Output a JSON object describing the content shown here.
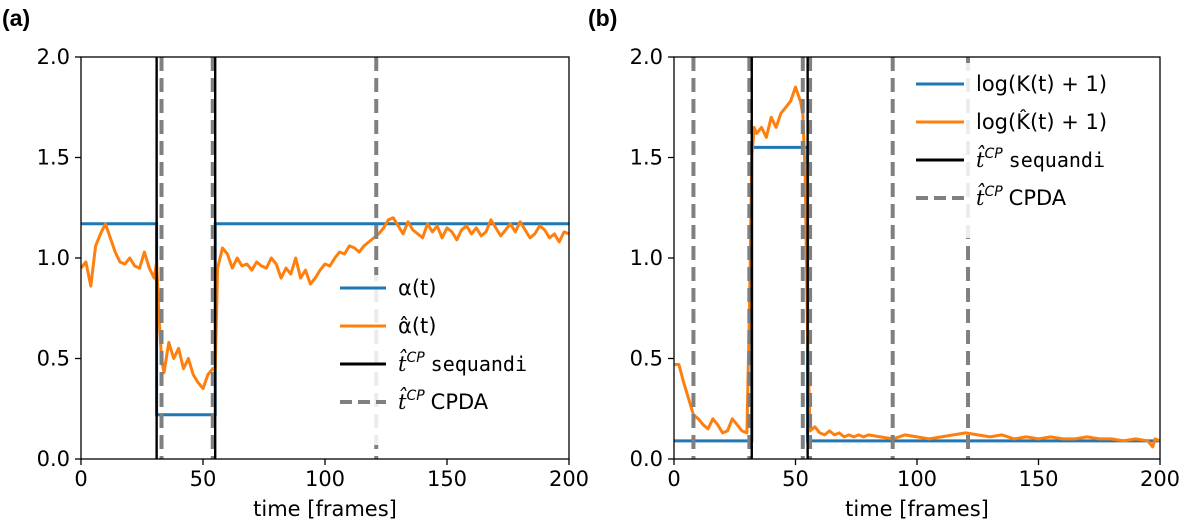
{
  "colors": {
    "true_series": "#1f77b4",
    "estimate_series": "#ff7f0e",
    "sequandi_line": "#000000",
    "cpda_line": "#808080"
  },
  "chart_data": [
    {
      "type": "line",
      "panel_label": "(a)",
      "xlabel": "time [frames]",
      "ylabel": "",
      "xlim": [
        0,
        200
      ],
      "ylim": [
        0,
        2.0
      ],
      "xticks": [
        "0",
        "50",
        "100",
        "150",
        "200"
      ],
      "yticks": [
        "0.0",
        "0.5",
        "1.0",
        "1.5",
        "2.0"
      ],
      "legend_position": "lower-right",
      "legend": [
        {
          "kind": "solid",
          "color_key": "true_series",
          "label": "α(t)"
        },
        {
          "kind": "solid",
          "color_key": "estimate_series",
          "label": "α̂(t)"
        },
        {
          "kind": "solid",
          "color_key": "sequandi_line",
          "label_math": "t̂",
          "label_sup": "CP",
          "label_rest": "sequandi"
        },
        {
          "kind": "dashed",
          "color_key": "cpda_line",
          "label_math": "t̂",
          "label_sup": "CP",
          "label_rest": "CPDA"
        }
      ],
      "true_series": {
        "x": [
          0,
          31,
          31,
          55,
          55,
          200
        ],
        "y": [
          1.17,
          1.17,
          0.22,
          0.22,
          1.17,
          1.17
        ]
      },
      "estimate_series": {
        "x": [
          0,
          2,
          4,
          6,
          8,
          10,
          12,
          14,
          16,
          18,
          20,
          22,
          24,
          26,
          28,
          30,
          31,
          32,
          33,
          34,
          36,
          38,
          40,
          42,
          44,
          46,
          48,
          50,
          52,
          54,
          55,
          56,
          58,
          60,
          62,
          64,
          66,
          68,
          70,
          72,
          74,
          76,
          78,
          80,
          82,
          84,
          86,
          88,
          90,
          92,
          94,
          96,
          98,
          100,
          102,
          104,
          106,
          108,
          110,
          112,
          114,
          116,
          118,
          120,
          122,
          124,
          126,
          128,
          130,
          132,
          134,
          136,
          138,
          140,
          142,
          144,
          146,
          148,
          150,
          152,
          154,
          156,
          158,
          160,
          162,
          164,
          166,
          168,
          170,
          172,
          174,
          176,
          178,
          180,
          182,
          184,
          186,
          188,
          190,
          192,
          194,
          196,
          198,
          200
        ],
        "y": [
          0.95,
          0.98,
          0.86,
          1.06,
          1.12,
          1.17,
          1.1,
          1.03,
          0.98,
          0.97,
          1.0,
          0.96,
          0.95,
          1.03,
          0.95,
          0.9,
          0.98,
          0.7,
          0.5,
          0.43,
          0.58,
          0.5,
          0.55,
          0.45,
          0.5,
          0.42,
          0.38,
          0.35,
          0.42,
          0.45,
          0.44,
          0.95,
          1.05,
          1.02,
          0.95,
          1.0,
          0.96,
          0.97,
          0.94,
          0.98,
          0.96,
          0.95,
          1.0,
          0.97,
          0.9,
          0.95,
          0.92,
          1.0,
          0.9,
          0.94,
          0.87,
          0.9,
          0.94,
          0.97,
          0.96,
          1.0,
          1.03,
          1.02,
          1.06,
          1.05,
          1.03,
          1.06,
          1.08,
          1.1,
          1.12,
          1.15,
          1.19,
          1.2,
          1.16,
          1.12,
          1.18,
          1.14,
          1.12,
          1.1,
          1.17,
          1.13,
          1.16,
          1.1,
          1.15,
          1.13,
          1.09,
          1.14,
          1.16,
          1.12,
          1.15,
          1.11,
          1.13,
          1.19,
          1.15,
          1.11,
          1.14,
          1.17,
          1.13,
          1.18,
          1.14,
          1.1,
          1.12,
          1.16,
          1.14,
          1.1,
          1.12,
          1.08,
          1.13,
          1.12
        ]
      },
      "sequandi_cp": [
        31,
        55
      ],
      "cpda_cp": [
        33,
        54,
        121
      ]
    },
    {
      "type": "line",
      "panel_label": "(b)",
      "xlabel": "time [frames]",
      "ylabel": "",
      "xlim": [
        0,
        200
      ],
      "ylim": [
        0,
        2.0
      ],
      "xticks": [
        "0",
        "50",
        "100",
        "150",
        "200"
      ],
      "yticks": [
        "0.0",
        "0.5",
        "1.0",
        "1.5",
        "2.0"
      ],
      "legend_position": "upper-right",
      "legend": [
        {
          "kind": "solid",
          "color_key": "true_series",
          "label": "log(K(t) + 1)"
        },
        {
          "kind": "solid",
          "color_key": "estimate_series",
          "label": "log(K̂(t) + 1)"
        },
        {
          "kind": "solid",
          "color_key": "sequandi_line",
          "label_math": "t̂",
          "label_sup": "CP",
          "label_rest": "sequandi"
        },
        {
          "kind": "dashed",
          "color_key": "cpda_line",
          "label_math": "t̂",
          "label_sup": "CP",
          "label_rest": "CPDA"
        }
      ],
      "true_series": {
        "x": [
          0,
          32,
          32,
          55,
          55,
          200
        ],
        "y": [
          0.09,
          0.09,
          1.55,
          1.55,
          0.09,
          0.09
        ]
      },
      "estimate_series": {
        "x": [
          0,
          2,
          4,
          6,
          8,
          10,
          12,
          14,
          16,
          18,
          20,
          22,
          24,
          26,
          28,
          30,
          31,
          32,
          33,
          34,
          36,
          38,
          40,
          42,
          44,
          46,
          48,
          50,
          52,
          53,
          54,
          55,
          56,
          58,
          60,
          62,
          64,
          66,
          68,
          70,
          72,
          74,
          76,
          78,
          80,
          85,
          90,
          95,
          100,
          105,
          110,
          115,
          120,
          125,
          130,
          135,
          140,
          145,
          150,
          155,
          160,
          165,
          170,
          175,
          180,
          185,
          190,
          195,
          197,
          198,
          200
        ],
        "y": [
          0.47,
          0.47,
          0.38,
          0.3,
          0.22,
          0.2,
          0.17,
          0.15,
          0.2,
          0.17,
          0.13,
          0.14,
          0.2,
          0.17,
          0.14,
          0.13,
          0.7,
          1.5,
          1.65,
          1.62,
          1.65,
          1.6,
          1.7,
          1.65,
          1.72,
          1.75,
          1.78,
          1.85,
          1.78,
          1.72,
          1.4,
          0.6,
          0.14,
          0.16,
          0.13,
          0.12,
          0.14,
          0.12,
          0.13,
          0.11,
          0.12,
          0.11,
          0.12,
          0.11,
          0.12,
          0.11,
          0.1,
          0.12,
          0.11,
          0.1,
          0.11,
          0.12,
          0.13,
          0.12,
          0.11,
          0.12,
          0.1,
          0.11,
          0.1,
          0.11,
          0.1,
          0.1,
          0.11,
          0.1,
          0.1,
          0.09,
          0.1,
          0.09,
          0.06,
          0.1,
          0.09
        ]
      },
      "sequandi_cp": [
        32,
        55
      ],
      "cpda_cp": [
        8,
        31,
        53,
        56,
        90,
        121
      ]
    }
  ]
}
